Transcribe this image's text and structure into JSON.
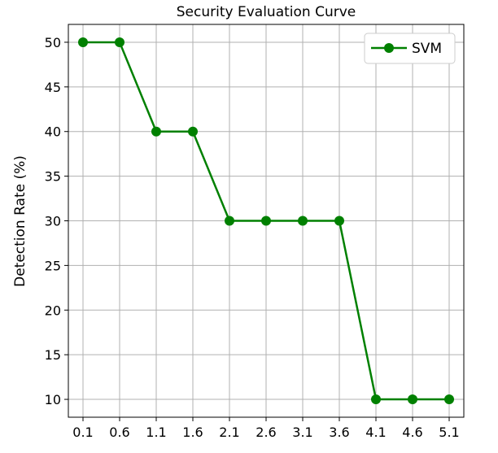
{
  "chart_data": {
    "type": "line",
    "title": "Security Evaluation Curve",
    "xlabel": "",
    "ylabel": "Detection Rate (%)",
    "x": [
      0.1,
      0.6,
      1.1,
      1.6,
      2.1,
      2.6,
      3.1,
      3.6,
      4.1,
      4.6,
      5.1
    ],
    "x_tick_labels": [
      "0.1",
      "0.6",
      "1.1",
      "1.6",
      "2.1",
      "2.6",
      "3.1",
      "3.6",
      "4.1",
      "4.6",
      "5.1"
    ],
    "y_ticks": [
      10,
      15,
      20,
      25,
      30,
      35,
      40,
      45,
      50
    ],
    "y_tick_labels": [
      "10",
      "15",
      "20",
      "25",
      "30",
      "35",
      "40",
      "45",
      "50"
    ],
    "xlim": [
      -0.1,
      5.3
    ],
    "ylim": [
      8.0,
      52.0
    ],
    "grid": true,
    "legend_position": "top-right",
    "series": [
      {
        "name": "SVM",
        "color": "#008000",
        "marker": "circle",
        "values": [
          50,
          50,
          40,
          40,
          30,
          30,
          30,
          30,
          10,
          10,
          10
        ]
      }
    ]
  }
}
